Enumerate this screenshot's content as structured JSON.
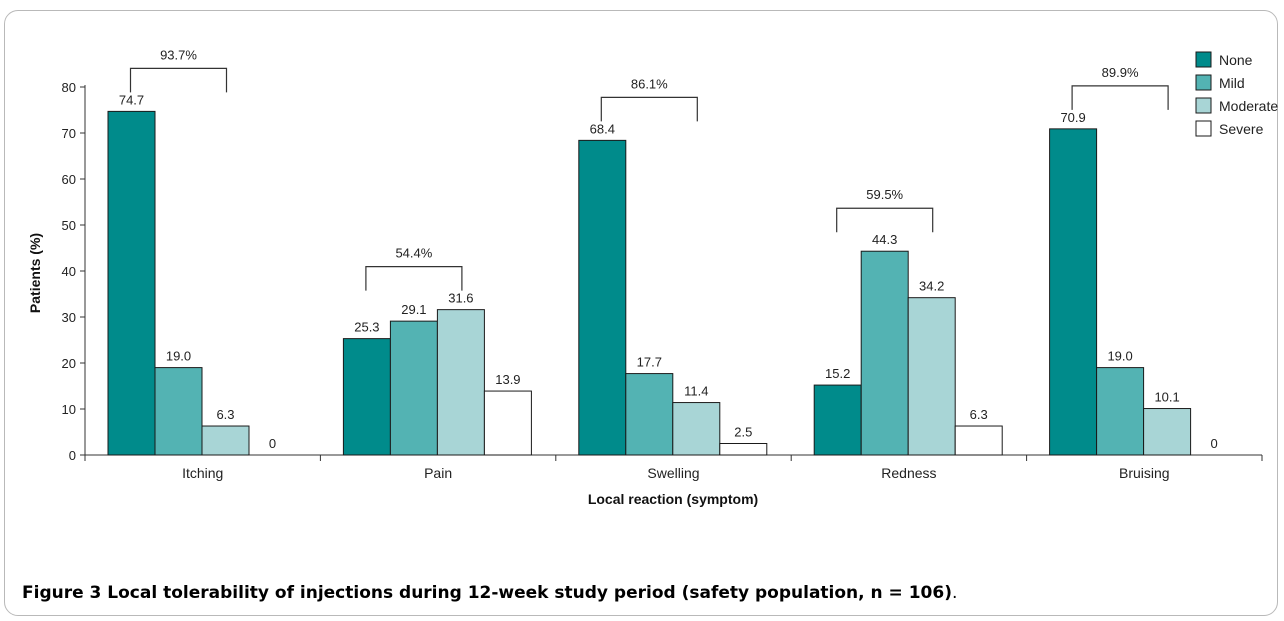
{
  "chart_data": {
    "type": "bar",
    "categories": [
      "Itching",
      "Pain",
      "Swelling",
      "Redness",
      "Bruising"
    ],
    "series": [
      {
        "name": "None",
        "color": "#008b8b",
        "values": [
          74.7,
          25.3,
          68.4,
          15.2,
          70.9
        ]
      },
      {
        "name": "Mild",
        "color": "#53b3b3",
        "values": [
          19.0,
          29.1,
          17.7,
          44.3,
          19.0
        ]
      },
      {
        "name": "Moderate",
        "color": "#a8d5d6",
        "values": [
          6.3,
          31.6,
          11.4,
          34.2,
          10.1
        ]
      },
      {
        "name": "Severe",
        "color": "#ffffff",
        "values": [
          0,
          13.9,
          2.5,
          6.3,
          0
        ]
      }
    ],
    "value_labels": [
      [
        "74.7",
        "25.3",
        "68.4",
        "15.2",
        "70.9"
      ],
      [
        "19.0",
        "29.1",
        "17.7",
        "44.3",
        "19.0"
      ],
      [
        "6.3",
        "31.6",
        "11.4",
        "34.2",
        "10.1"
      ],
      [
        "0",
        "13.9",
        "2.5",
        "6.3",
        "0"
      ]
    ],
    "bracket_labels": [
      "93.7%",
      "54.4%",
      "86.1%",
      "59.5%",
      "89.9%"
    ],
    "ylabel": "Patients (%)",
    "xlabel": "Local reaction (symptom)",
    "ylim": [
      0,
      80
    ],
    "yticks": [
      0,
      10,
      20,
      30,
      40,
      50,
      60,
      70,
      80
    ],
    "ytick_labels": [
      "0",
      "10",
      "20",
      "30",
      "40",
      "50",
      "60",
      "70",
      "80"
    ],
    "legend_position": "top-right",
    "grid": false
  },
  "caption": {
    "label": "Figure 3",
    "text": " Local tolerability of injections during 12-week study period (safety population, n = 106)",
    "period": "."
  }
}
